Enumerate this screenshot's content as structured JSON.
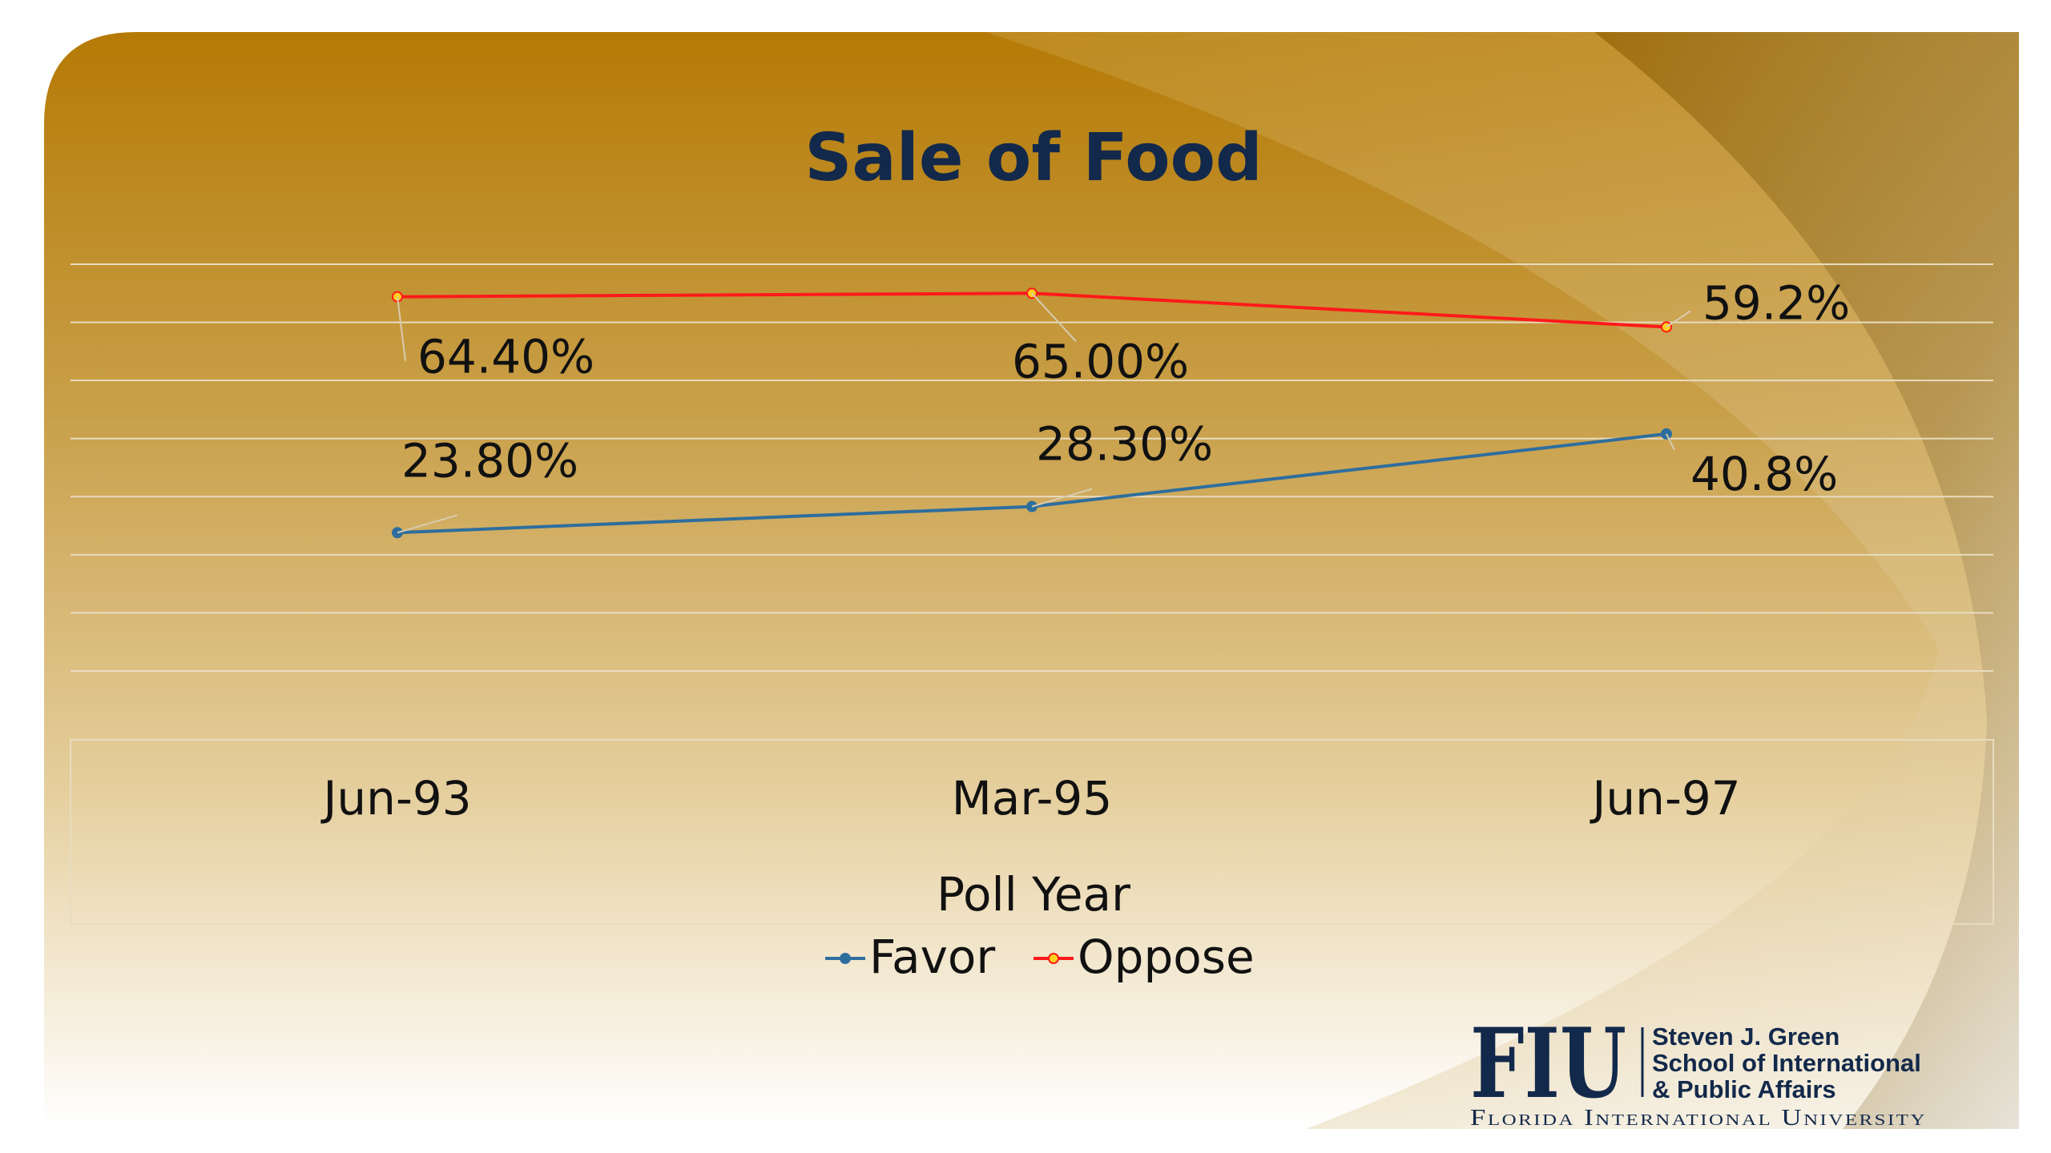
{
  "colors": {
    "favor": "#2e6e9e",
    "oppose": "#ff1a1a",
    "marker_oppose_fill": "#ffd21f",
    "gridline": "#e8dcc0",
    "title": "#13294b"
  },
  "chart_data": {
    "type": "line",
    "title": "Sale of Food",
    "xlabel": "Poll Year",
    "ylabel": "",
    "categories": [
      "Jun-93",
      "Mar-95",
      "Jun-97"
    ],
    "ylim": [
      0,
      70
    ],
    "grid": true,
    "legend_position": "bottom",
    "series": [
      {
        "name": "Favor",
        "values": [
          23.8,
          28.3,
          40.8
        ],
        "labels": [
          "23.80%",
          "28.30%",
          "40.8%"
        ],
        "color": "#2e6e9e"
      },
      {
        "name": "Oppose",
        "values": [
          64.4,
          65.0,
          59.2
        ],
        "labels": [
          "64.40%",
          "65.00%",
          "59.2%"
        ],
        "color": "#ff1a1a"
      }
    ]
  },
  "logo": {
    "mark": "FIU",
    "school_lines": [
      "Steven J. Green",
      "School of International",
      "& Public Affairs"
    ],
    "university": "Florida International University"
  }
}
